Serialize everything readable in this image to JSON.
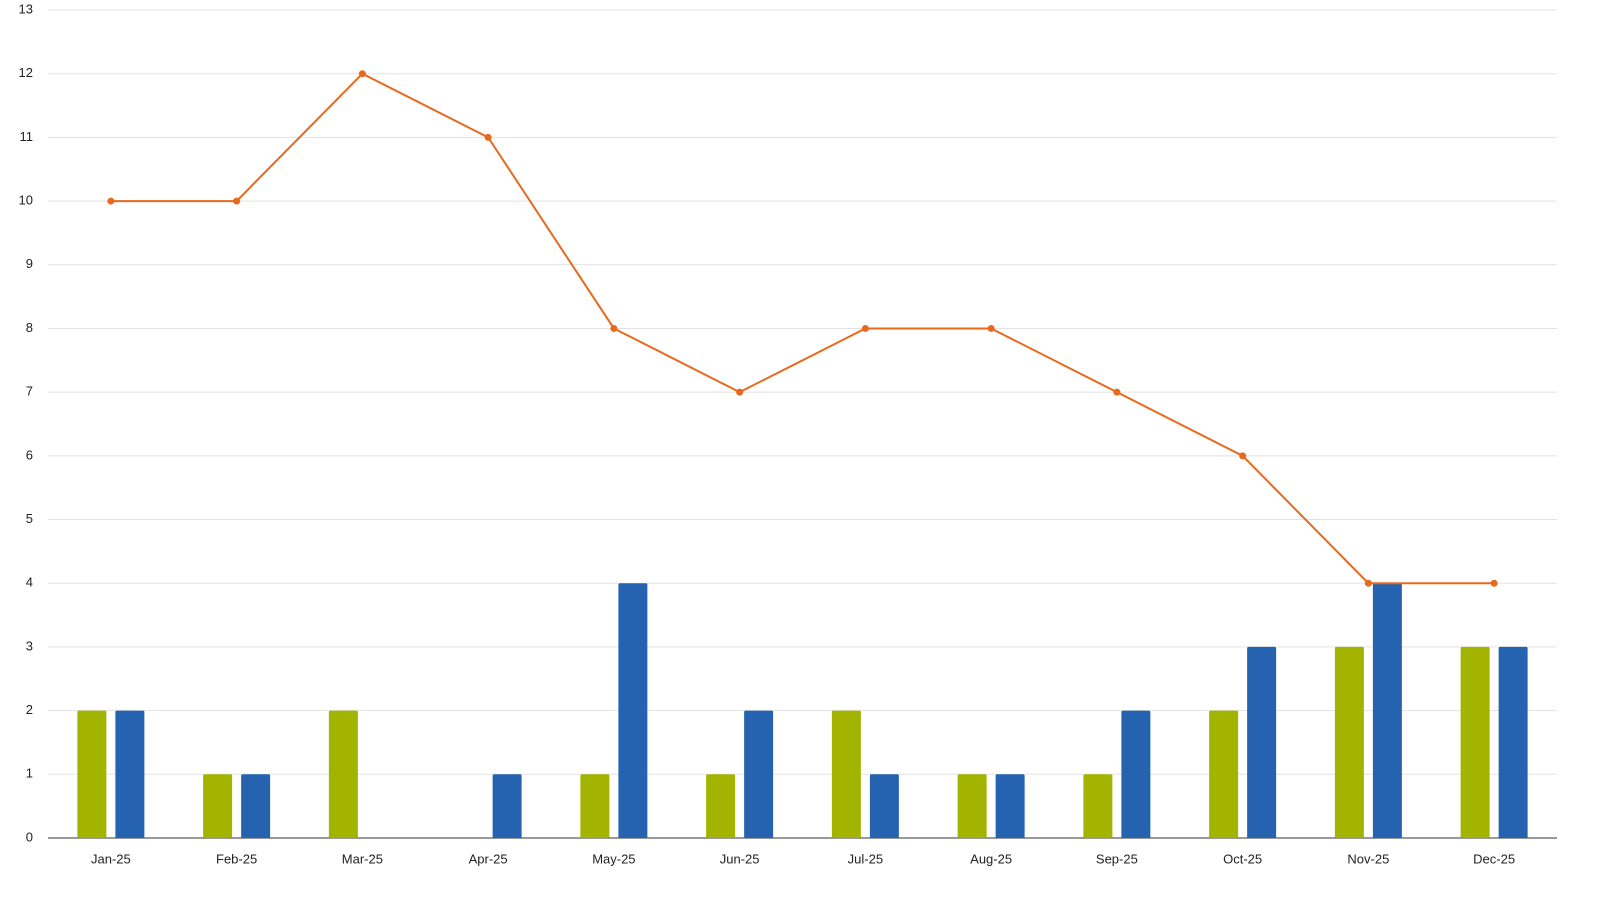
{
  "chart_data": {
    "type": "bar",
    "categories": [
      "Jan-25",
      "Feb-25",
      "Mar-25",
      "Apr-25",
      "May-25",
      "Jun-25",
      "Jul-25",
      "Aug-25",
      "Sep-25",
      "Oct-25",
      "Nov-25",
      "Dec-25"
    ],
    "series": [
      {
        "type": "bar",
        "color": "#a2b400",
        "values": [
          2,
          1,
          2,
          0,
          1,
          1,
          2,
          1,
          1,
          2,
          3,
          3
        ]
      },
      {
        "type": "bar",
        "color": "#2563b0",
        "values": [
          2,
          1,
          0,
          1,
          4,
          2,
          1,
          1,
          2,
          3,
          4,
          3
        ]
      },
      {
        "type": "line",
        "color": "#e8691d",
        "values": [
          10,
          10,
          12,
          11,
          8,
          7,
          8,
          8,
          7,
          6,
          4,
          4
        ]
      }
    ],
    "ylim": [
      0,
      13
    ],
    "yticks": [
      0,
      1,
      2,
      3,
      4,
      5,
      6,
      7,
      8,
      9,
      10,
      11,
      12,
      13
    ],
    "grid": true
  }
}
